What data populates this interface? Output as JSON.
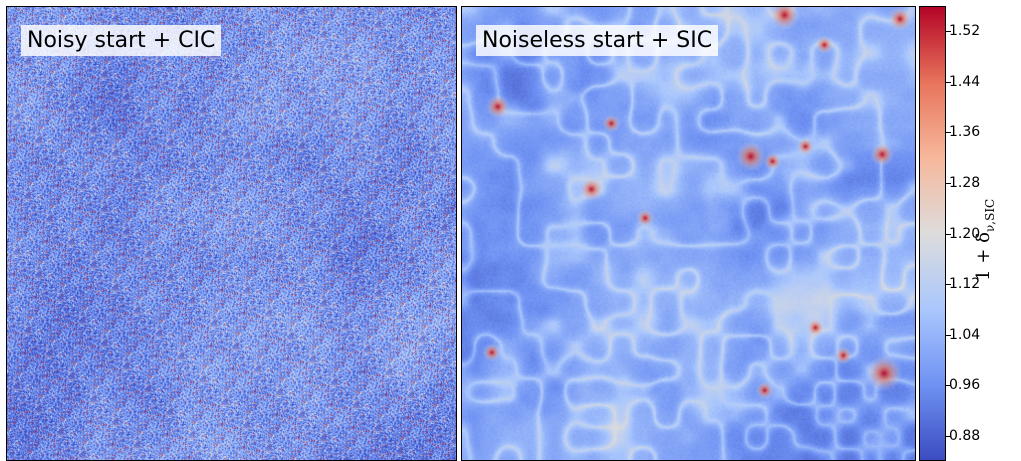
{
  "chart_data": [
    {
      "type": "heatmap",
      "panel_label": "Noisy start + CIC",
      "field": "density contrast map with strong shot noise",
      "colormap": "coolwarm"
    },
    {
      "type": "heatmap",
      "panel_label": "Noiseless start + SIC",
      "field": "smooth cosmic-web density field",
      "colormap": "coolwarm"
    }
  ],
  "colorbar": {
    "label_main": "1 + δ",
    "label_sub": "ν,SIC",
    "min": 0.84,
    "max": 1.56,
    "ticks": [
      "1.52",
      "1.44",
      "1.36",
      "1.28",
      "1.20",
      "1.12",
      "1.04",
      "0.96",
      "0.88"
    ],
    "tick_values": [
      1.52,
      1.44,
      1.36,
      1.28,
      1.2,
      1.12,
      1.04,
      0.96,
      0.88
    ],
    "colors": [
      "#3b4cc0",
      "#6f92f3",
      "#aac7fd",
      "#dddcdc",
      "#f7b89c",
      "#e7745b",
      "#b40426"
    ]
  }
}
